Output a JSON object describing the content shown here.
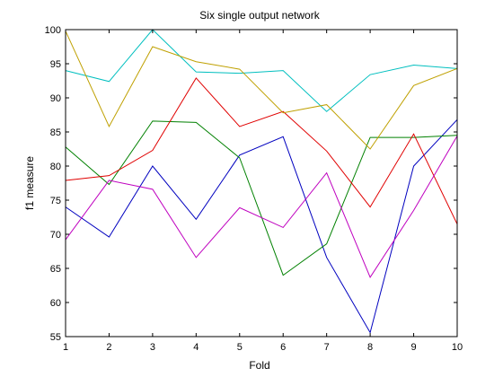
{
  "chart_data": {
    "type": "line",
    "title": "Six single output network",
    "xlabel": "Fold",
    "ylabel": "f1 measure",
    "xlim": [
      1,
      10
    ],
    "ylim": [
      55,
      100
    ],
    "xticks": [
      1,
      2,
      3,
      4,
      5,
      6,
      7,
      8,
      9,
      10
    ],
    "yticks": [
      55,
      60,
      65,
      70,
      75,
      80,
      85,
      90,
      95,
      100
    ],
    "x": [
      1,
      2,
      3,
      4,
      5,
      6,
      7,
      8,
      9,
      10
    ],
    "grid": false,
    "series": [
      {
        "color": "#0000bf",
        "values": [
          74.0,
          69.6,
          80.0,
          72.2,
          81.6,
          84.3,
          66.6,
          55.6,
          80.0,
          86.8
        ]
      },
      {
        "color": "#008000",
        "values": [
          82.8,
          77.3,
          86.6,
          86.4,
          81.2,
          64.0,
          68.6,
          84.2,
          84.2,
          84.5
        ]
      },
      {
        "color": "#e00000",
        "values": [
          77.9,
          78.6,
          82.3,
          92.9,
          85.8,
          88.0,
          82.2,
          74.0,
          84.7,
          71.5
        ]
      },
      {
        "color": "#00bfbf",
        "values": [
          94.0,
          92.4,
          100.0,
          93.8,
          93.6,
          94.0,
          88.0,
          93.4,
          94.8,
          94.3
        ]
      },
      {
        "color": "#bf00bf",
        "values": [
          69.2,
          77.9,
          76.6,
          66.6,
          73.9,
          71.0,
          79.0,
          63.7,
          73.5,
          84.4
        ]
      },
      {
        "color": "#bfa000",
        "values": [
          99.8,
          85.8,
          97.5,
          95.3,
          94.2,
          87.8,
          89.0,
          82.5,
          91.8,
          94.3
        ]
      }
    ]
  }
}
